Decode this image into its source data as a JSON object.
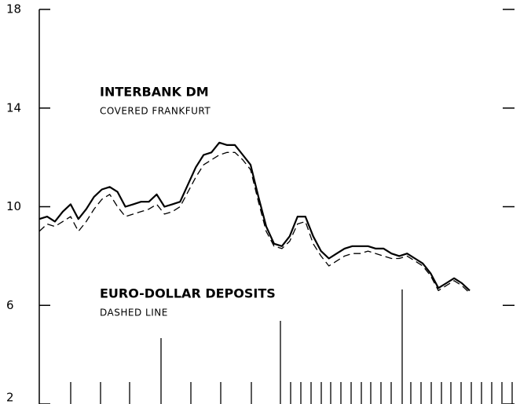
{
  "chart_data": {
    "type": "line",
    "categories": [
      null,
      null,
      null,
      null,
      null,
      null,
      null,
      null,
      null,
      null,
      null,
      null,
      null,
      null,
      null,
      null,
      null,
      null,
      null,
      null,
      null,
      null,
      null,
      null,
      null,
      null,
      null,
      null,
      null,
      null,
      null,
      null,
      null,
      null,
      null,
      null,
      null,
      null,
      null,
      null,
      null,
      null,
      null,
      null,
      null,
      null,
      null,
      null,
      null,
      null,
      null,
      null,
      null,
      null,
      null,
      null
    ],
    "series": [
      {
        "name": "INTERBANK DM",
        "annotation": "COVERED FRANKFURT",
        "color": "#000000",
        "dash": false,
        "values": [
          9.5,
          9.6,
          9.4,
          9.8,
          10.1,
          9.5,
          9.9,
          10.4,
          10.7,
          10.8,
          10.6,
          10.0,
          10.1,
          10.2,
          10.2,
          10.5,
          10.0,
          10.1,
          10.2,
          10.9,
          11.6,
          12.1,
          12.2,
          12.6,
          12.5,
          12.5,
          12.1,
          11.7,
          10.4,
          9.2,
          8.5,
          8.4,
          8.8,
          9.6,
          9.6,
          8.8,
          8.2,
          7.9,
          8.1,
          8.3,
          8.4,
          8.4,
          8.4,
          8.3,
          8.3,
          8.1,
          8.0,
          8.1,
          7.9,
          7.7,
          7.3,
          6.7,
          6.9,
          7.1,
          6.9,
          6.6
        ]
      },
      {
        "name": "EURO-DOLLAR DEPOSITS",
        "annotation": "DASHED LINE",
        "color": "#000000",
        "dash": true,
        "values": [
          9.0,
          9.3,
          9.2,
          9.4,
          9.6,
          9.0,
          9.4,
          9.9,
          10.3,
          10.5,
          10.0,
          9.6,
          9.7,
          9.8,
          9.9,
          10.1,
          9.7,
          9.8,
          10.0,
          10.6,
          11.2,
          11.7,
          11.9,
          12.1,
          12.2,
          12.2,
          11.9,
          11.5,
          10.2,
          9.0,
          8.4,
          8.3,
          8.6,
          9.3,
          9.4,
          8.5,
          8.0,
          7.6,
          7.8,
          8.0,
          8.1,
          8.1,
          8.2,
          8.1,
          8.0,
          7.9,
          7.9,
          8.0,
          7.8,
          7.6,
          7.2,
          6.6,
          6.8,
          7.0,
          6.8,
          6.5
        ]
      }
    ],
    "ylim": [
      2,
      18
    ],
    "yticks": [
      2,
      6,
      10,
      14,
      18
    ]
  }
}
